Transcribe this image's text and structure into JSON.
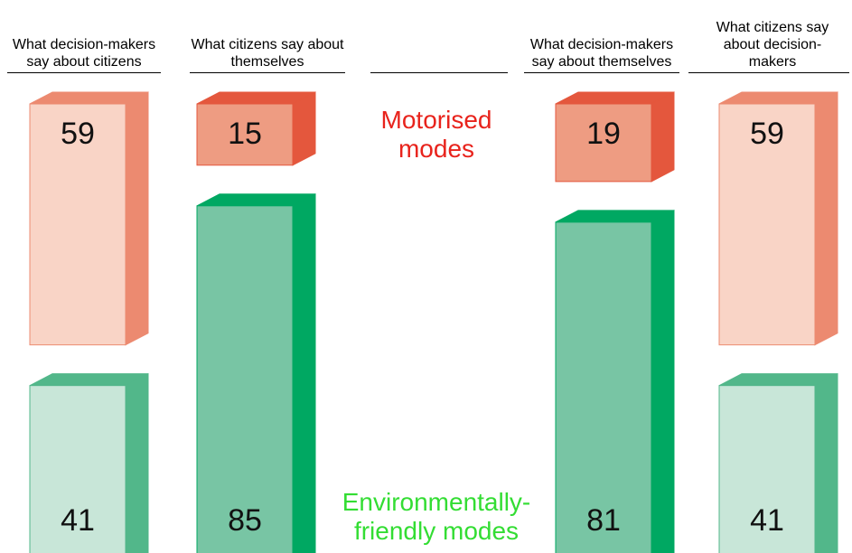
{
  "chart_data": {
    "type": "bar",
    "categories": [
      "What decision-makers say about citizens",
      "What citizens say about themselves",
      "What decision-makers say about themselves",
      "What citizens say about decision-makers"
    ],
    "series": [
      {
        "name": "Motorised modes",
        "color": "#e8231c",
        "values": [
          59,
          15,
          19,
          59
        ],
        "colors": [
          "#f9d4c6",
          "#ee9c82",
          "#ee9c82",
          "#f9d4c6"
        ],
        "side_colors": [
          "#ec8a70",
          "#e4573d",
          "#e4573d",
          "#ec8a70"
        ]
      },
      {
        "name": "Environmentally-friendly modes",
        "color": "#33dd33",
        "values": [
          41,
          85,
          81,
          41
        ],
        "colors": [
          "#c8e6d8",
          "#78c5a4",
          "#78c5a4",
          "#c8e6d8"
        ],
        "side_colors": [
          "#52b78a",
          "#00a862",
          "#00a862",
          "#52b78a"
        ]
      }
    ]
  }
}
